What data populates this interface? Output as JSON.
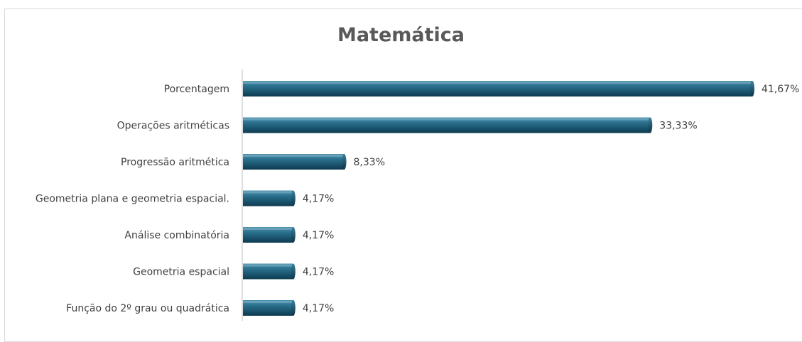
{
  "chart_data": {
    "type": "bar",
    "orientation": "horizontal",
    "title": "Matemática",
    "xlabel": "",
    "ylabel": "",
    "categories": [
      "Porcentagem",
      "Operações aritméticas",
      "Progressão aritmética",
      "Geometria plana e geometria espacial.",
      "Análise combinatória",
      "Geometria espacial",
      "Função do 2º grau ou quadrática"
    ],
    "values": [
      41.67,
      33.33,
      8.33,
      4.17,
      4.17,
      4.17,
      4.17
    ],
    "value_labels": [
      "41,67%",
      "33,33%",
      "8,33%",
      "4,17%",
      "4,17%",
      "4,17%",
      "4,17%"
    ],
    "xlim": [
      0,
      41.67
    ],
    "grid": false,
    "legend": "none",
    "bar_color": "#1f5f7a"
  }
}
